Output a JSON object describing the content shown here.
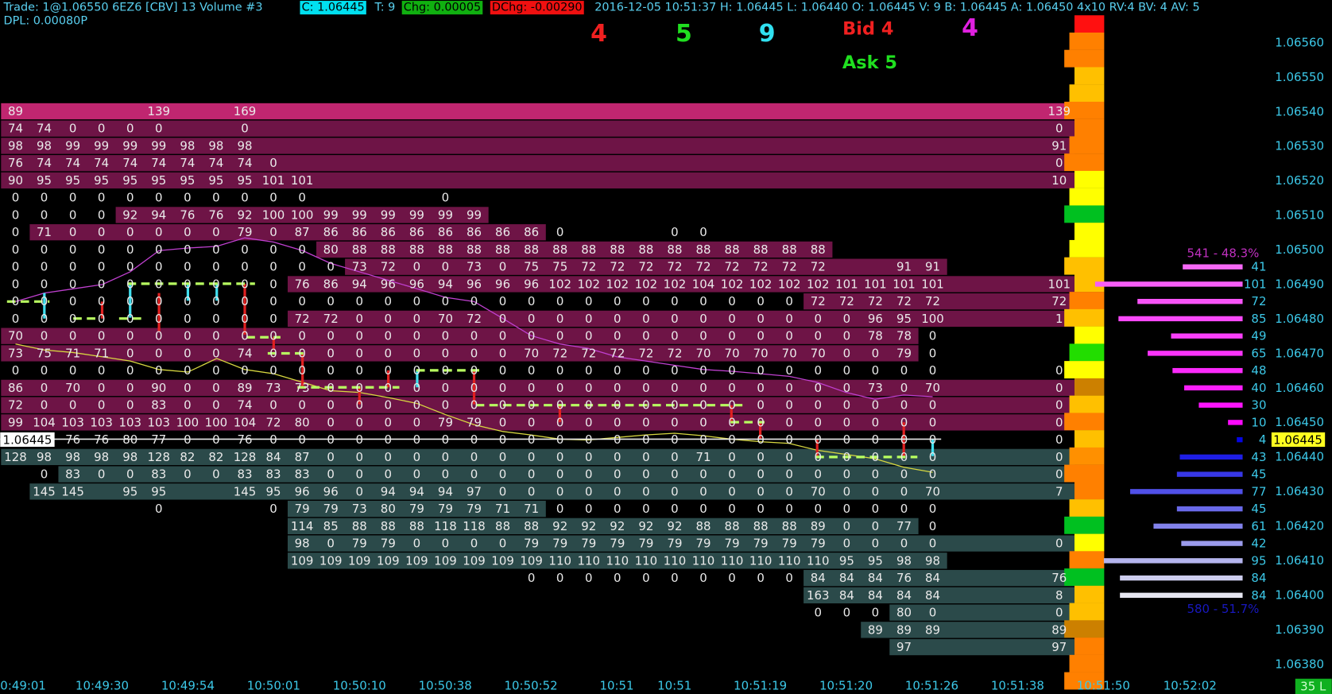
{
  "header": {
    "trade": "Trade: 1@1.06550  6EZ6 [CBV]  13 Volume  #3",
    "close": "C: 1.06445",
    "ticks": "T: 9",
    "change": "Chg: 0.00005",
    "day_change": "DChg: -0.00290",
    "info": "2016-12-05 10:51:37 H: 1.06445 L: 1.06440 O: 1.06445 V: 9 B: 1.06445 A: 1.06450 4x10 RV:4 BV: 4 AV: 5",
    "dpl": "DPL: 0.00080P"
  },
  "summary": {
    "sells": 4,
    "buys": 5,
    "trades": 9,
    "bid": "Bid 4",
    "ask": "Ask 5",
    "size": 4
  },
  "current_price": "1.06445",
  "price_axis": [
    "1.06560",
    "1.06550",
    "1.06540",
    "1.06530",
    "1.06520",
    "1.06510",
    "1.06500",
    "1.06490",
    "1.06480",
    "1.06470",
    "1.06460",
    "1.06450",
    "1.06440",
    "1.06430",
    "1.06420",
    "1.06410",
    "1.06400",
    "1.06390",
    "1.06380"
  ],
  "time_axis": [
    "0:49:01",
    "10:49:30",
    "10:49:54",
    "10:50:01",
    "10:50:10",
    "10:50:38",
    "10:50:52",
    "10:51",
    "10:51",
    "10:51:19",
    "10:51:20",
    "10:51:26",
    "10:51:38",
    "10:51:50",
    "10:52:02"
  ],
  "badge": "35 L",
  "profile": {
    "ask_total": "541 - 48.3%",
    "bid_total": "580 - 51.7%"
  },
  "grid": {
    "rows": [
      {
        "cells": [
          89,
          null,
          null,
          null,
          null,
          139,
          null,
          null,
          169
        ],
        "edge": 139,
        "profile": null
      },
      {
        "cells": [
          74,
          74,
          0,
          0,
          0,
          0,
          null,
          null,
          0
        ],
        "edge": 0,
        "profile": null
      },
      {
        "cells": [
          98,
          98,
          99,
          99,
          99,
          99,
          98,
          98,
          98
        ],
        "edge": 91,
        "profile": null
      },
      {
        "cells": [
          76,
          74,
          74,
          74,
          74,
          74,
          74,
          74,
          74,
          0
        ],
        "edge": 0,
        "profile": null
      },
      {
        "cells": [
          90,
          95,
          95,
          95,
          95,
          95,
          95,
          95,
          95,
          101,
          101
        ],
        "edge": 10,
        "profile": null
      },
      {
        "cells": [
          0,
          0,
          0,
          0,
          0,
          0,
          0,
          0,
          0,
          0,
          0,
          null,
          null,
          null,
          null,
          0
        ],
        "edge": null,
        "profile": null
      },
      {
        "cells": [
          0,
          0,
          0,
          0,
          92,
          94,
          76,
          76,
          92,
          100,
          100,
          99,
          99,
          99,
          99,
          99,
          99
        ],
        "edge": null,
        "profile": null
      },
      {
        "cells": [
          0,
          71,
          0,
          0,
          0,
          0,
          0,
          0,
          79,
          0,
          87,
          86,
          86,
          86,
          86,
          86,
          86,
          86,
          86,
          0,
          null,
          null,
          null,
          0,
          0
        ],
        "edge": null,
        "profile": null
      },
      {
        "cells": [
          0,
          0,
          0,
          0,
          0,
          0,
          0,
          0,
          0,
          0,
          0,
          80,
          88,
          88,
          88,
          88,
          88,
          88,
          88,
          88,
          88,
          88,
          88,
          88,
          88,
          88,
          88,
          88,
          88
        ],
        "edge": null,
        "profile": null
      },
      {
        "cells": [
          0,
          0,
          0,
          0,
          0,
          0,
          0,
          0,
          0,
          0,
          0,
          0,
          73,
          72,
          0,
          0,
          73,
          0,
          75,
          75,
          72,
          72,
          72,
          72,
          72,
          72,
          72,
          72,
          72,
          null,
          null,
          91,
          91
        ],
        "edge": null,
        "profile": 41
      },
      {
        "cells": [
          0,
          0,
          0,
          0,
          0,
          0,
          0,
          0,
          0,
          0,
          76,
          86,
          94,
          96,
          96,
          94,
          96,
          96,
          96,
          102,
          102,
          102,
          102,
          102,
          104,
          102,
          102,
          102,
          102,
          101,
          101,
          101,
          101
        ],
        "edge": 101,
        "profile": 101
      },
      {
        "cells": [
          0,
          0,
          0,
          0,
          0,
          0,
          0,
          0,
          0,
          0,
          0,
          0,
          0,
          0,
          0,
          0,
          0,
          0,
          0,
          0,
          0,
          0,
          0,
          0,
          0,
          0,
          0,
          0,
          72,
          72,
          72,
          72,
          72
        ],
        "edge": 72,
        "profile": 72
      },
      {
        "cells": [
          0,
          0,
          0,
          0,
          0,
          0,
          0,
          0,
          0,
          0,
          72,
          72,
          0,
          0,
          0,
          70,
          72,
          0,
          0,
          0,
          0,
          0,
          0,
          0,
          0,
          0,
          0,
          0,
          0,
          0,
          96,
          95,
          100
        ],
        "edge": 1,
        "profile": 85
      },
      {
        "cells": [
          70,
          0,
          0,
          0,
          0,
          0,
          0,
          0,
          0,
          0,
          0,
          0,
          0,
          0,
          0,
          0,
          0,
          0,
          0,
          0,
          0,
          0,
          0,
          0,
          0,
          0,
          0,
          0,
          0,
          0,
          78,
          78,
          0
        ],
        "edge": null,
        "profile": 49
      },
      {
        "cells": [
          73,
          75,
          71,
          71,
          0,
          0,
          0,
          0,
          74,
          0,
          0,
          0,
          0,
          0,
          0,
          0,
          0,
          0,
          70,
          72,
          72,
          72,
          72,
          72,
          70,
          70,
          70,
          70,
          70,
          0,
          0,
          79,
          0
        ],
        "edge": null,
        "profile": 65
      },
      {
        "cells": [
          0,
          0,
          0,
          0,
          0,
          0,
          0,
          0,
          0,
          0,
          0,
          0,
          0,
          0,
          0,
          0,
          0,
          0,
          0,
          0,
          0,
          0,
          0,
          0,
          0,
          0,
          0,
          0,
          0,
          0,
          0,
          0,
          0
        ],
        "edge": 0,
        "profile": 48
      },
      {
        "cells": [
          86,
          0,
          70,
          0,
          0,
          90,
          0,
          0,
          89,
          73,
          73,
          0,
          0,
          0,
          0,
          0,
          0,
          0,
          0,
          0,
          0,
          0,
          0,
          0,
          0,
          0,
          0,
          0,
          0,
          0,
          73,
          0,
          70
        ],
        "edge": 0,
        "profile": 40
      },
      {
        "cells": [
          72,
          0,
          0,
          0,
          0,
          83,
          0,
          0,
          74,
          0,
          0,
          0,
          0,
          0,
          0,
          0,
          0,
          0,
          0,
          0,
          0,
          0,
          0,
          0,
          0,
          0,
          0,
          0,
          0,
          0,
          0,
          0,
          0
        ],
        "edge": 0,
        "profile": 30
      },
      {
        "cells": [
          99,
          104,
          103,
          103,
          103,
          103,
          100,
          100,
          104,
          72,
          80,
          0,
          0,
          0,
          0,
          79,
          79,
          0,
          0,
          0,
          0,
          0,
          0,
          0,
          0,
          0,
          0,
          0,
          0,
          0,
          0,
          0,
          0
        ],
        "edge": 0,
        "profile": 10
      },
      {
        "cells": [
          null,
          null,
          76,
          76,
          80,
          77,
          0,
          0,
          76,
          0,
          0,
          0,
          0,
          0,
          0,
          0,
          0,
          0,
          0,
          0,
          0,
          0,
          0,
          0,
          0,
          0,
          0,
          0,
          0,
          0,
          0,
          0,
          0
        ],
        "edge": 0,
        "profile": 4
      },
      {
        "cells": [
          128,
          98,
          98,
          98,
          98,
          128,
          82,
          82,
          128,
          84,
          87,
          0,
          0,
          0,
          0,
          0,
          0,
          0,
          0,
          0,
          0,
          0,
          0,
          0,
          71,
          0,
          0,
          0,
          0,
          0,
          0,
          0,
          0
        ],
        "edge": 0,
        "profile": 43
      },
      {
        "cells": [
          null,
          0,
          83,
          0,
          0,
          83,
          0,
          0,
          83,
          83,
          83,
          0,
          0,
          0,
          0,
          0,
          0,
          0,
          0,
          0,
          0,
          0,
          0,
          0,
          0,
          0,
          0,
          0,
          0,
          0,
          0,
          0,
          0
        ],
        "edge": 0,
        "profile": 45
      },
      {
        "cells": [
          null,
          145,
          145,
          null,
          95,
          95,
          null,
          null,
          145,
          95,
          96,
          96,
          0,
          94,
          94,
          94,
          97,
          0,
          0,
          0,
          0,
          0,
          0,
          0,
          0,
          0,
          0,
          0,
          70,
          0,
          0,
          0,
          70
        ],
        "edge": 7,
        "profile": 77
      },
      {
        "cells": [
          null,
          null,
          null,
          null,
          null,
          0,
          null,
          null,
          null,
          0,
          79,
          79,
          73,
          80,
          79,
          79,
          79,
          71,
          71,
          0,
          0,
          0,
          0,
          0,
          0,
          0,
          0,
          0,
          0,
          0,
          0,
          0,
          0
        ],
        "edge": null,
        "profile": 45
      },
      {
        "cells": [
          null,
          null,
          null,
          null,
          null,
          null,
          null,
          null,
          null,
          null,
          114,
          85,
          88,
          88,
          88,
          118,
          118,
          88,
          88,
          92,
          92,
          92,
          92,
          92,
          88,
          88,
          88,
          88,
          89,
          0,
          0,
          77,
          0
        ],
        "edge": null,
        "profile": 61
      },
      {
        "cells": [
          null,
          null,
          null,
          null,
          null,
          null,
          null,
          null,
          null,
          null,
          98,
          0,
          79,
          79,
          0,
          0,
          0,
          0,
          79,
          79,
          79,
          79,
          79,
          79,
          79,
          79,
          79,
          79,
          79,
          0,
          0,
          0,
          0
        ],
        "edge": 0,
        "profile": 42
      },
      {
        "cells": [
          null,
          null,
          null,
          null,
          null,
          null,
          null,
          null,
          null,
          null,
          109,
          109,
          109,
          109,
          109,
          109,
          109,
          109,
          109,
          110,
          110,
          110,
          110,
          110,
          110,
          110,
          110,
          110,
          110,
          95,
          95,
          98,
          98
        ],
        "edge": null,
        "profile": 95
      },
      {
        "cells": [
          null,
          null,
          null,
          null,
          null,
          null,
          null,
          null,
          null,
          null,
          null,
          null,
          null,
          null,
          null,
          null,
          null,
          null,
          0,
          0,
          0,
          0,
          0,
          0,
          0,
          0,
          0,
          0,
          84,
          84,
          84,
          76,
          84
        ],
        "edge": 76,
        "profile": 84
      },
      {
        "cells": [
          null,
          null,
          null,
          null,
          null,
          null,
          null,
          null,
          null,
          null,
          null,
          null,
          null,
          null,
          null,
          null,
          null,
          null,
          null,
          null,
          null,
          null,
          null,
          null,
          null,
          null,
          null,
          null,
          163,
          84,
          84,
          84,
          84
        ],
        "edge": 8,
        "profile": 84
      },
      {
        "cells": [
          null,
          null,
          null,
          null,
          null,
          null,
          null,
          null,
          null,
          null,
          null,
          null,
          null,
          null,
          null,
          null,
          null,
          null,
          null,
          null,
          null,
          null,
          null,
          null,
          null,
          null,
          null,
          null,
          0,
          0,
          0,
          80,
          0
        ],
        "edge": 0,
        "profile": null
      },
      {
        "cells": [
          null,
          null,
          null,
          null,
          null,
          null,
          null,
          null,
          null,
          null,
          null,
          null,
          null,
          null,
          null,
          null,
          null,
          null,
          null,
          null,
          null,
          null,
          null,
          null,
          null,
          null,
          null,
          null,
          null,
          null,
          89,
          89,
          89
        ],
        "edge": 89,
        "profile": null
      },
      {
        "cells": [
          null,
          null,
          null,
          null,
          null,
          null,
          null,
          null,
          null,
          null,
          null,
          null,
          null,
          null,
          null,
          null,
          null,
          null,
          null,
          null,
          null,
          null,
          null,
          null,
          null,
          null,
          null,
          null,
          null,
          null,
          null,
          97
        ],
        "edge": 97,
        "profile": null
      }
    ]
  }
}
